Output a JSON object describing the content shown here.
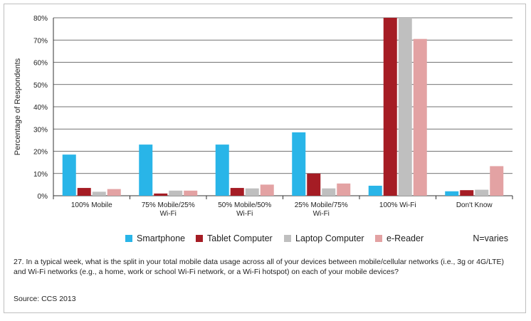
{
  "chart_data": {
    "type": "bar",
    "ylabel": "Percentage of Respondents",
    "ylim": [
      0,
      80
    ],
    "yticks": [
      "0%",
      "10%",
      "20%",
      "30%",
      "40%",
      "50%",
      "60%",
      "70%",
      "80%"
    ],
    "categories": [
      [
        "100% Mobile"
      ],
      [
        "75% Mobile/25%",
        "Wi-Fi"
      ],
      [
        "50% Mobile/50%",
        "Wi-Fi"
      ],
      [
        "25% Mobile/75%",
        "Wi-Fi"
      ],
      [
        "100% Wi-Fi"
      ],
      [
        "Don't Know"
      ]
    ],
    "series": [
      {
        "name": "Smartphone",
        "color": "#29b5e8",
        "values": [
          18.5,
          23,
          23,
          28.5,
          4.5,
          2
        ]
      },
      {
        "name": "Tablet Computer",
        "color": "#a51c24",
        "values": [
          3.5,
          1,
          3.5,
          10,
          80,
          2.5
        ]
      },
      {
        "name": "Laptop Computer",
        "color": "#bfbfbf",
        "values": [
          1.8,
          2.3,
          3.3,
          3.3,
          80,
          2.7
        ]
      },
      {
        "name": "e-Reader",
        "color": "#e3a2a3",
        "values": [
          3,
          2.3,
          5,
          5.5,
          70.5,
          13.3
        ]
      }
    ],
    "grid": true,
    "legend": "bottom"
  },
  "note": "N=varies",
  "question": "27. In a typical week, what is the split in your total mobile data usage across all of your devices between mobile/cellular networks (i.e., 3g or 4G/LTE) and Wi-Fi networks (e.g., a home, work or school Wi-Fi network, or a Wi-Fi hotspot) on each of your mobile devices?",
  "source": "Source: CCS 2013"
}
